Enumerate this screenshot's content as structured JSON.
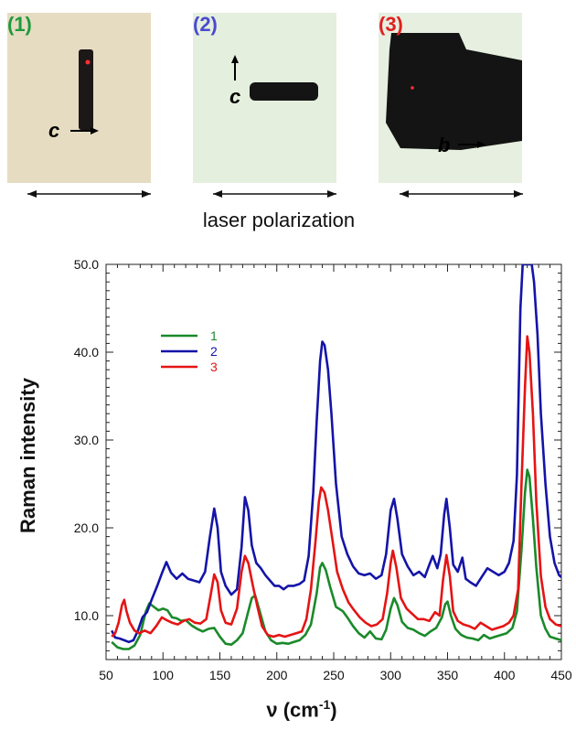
{
  "photos": [
    {
      "label": "(1)",
      "color": "#1f9a3c",
      "annotation_axis": "c"
    },
    {
      "label": "(2)",
      "color": "#4a4bd0",
      "annotation_axis": "c"
    },
    {
      "label": "(3)",
      "color": "#e02020",
      "annotation_axis": "b"
    }
  ],
  "caption": "laser polarization",
  "chart_data": {
    "type": "line",
    "title": "",
    "xlabel_prefix": "ν (cm",
    "xlabel_exp": "-1",
    "xlabel_suffix": ")",
    "ylabel": "Raman intensity",
    "xlim": [
      50,
      450
    ],
    "ylim": [
      5,
      50
    ],
    "x_ticks": [
      50,
      100,
      150,
      200,
      250,
      300,
      350,
      400,
      450
    ],
    "y_ticks": [
      10,
      20,
      30,
      40,
      50
    ],
    "y_tick_labels": [
      "10.0",
      "20.0",
      "30.0",
      "40.0",
      "50.0"
    ],
    "grid": false,
    "legend_position": "top-left",
    "series": [
      {
        "name": "1",
        "color": "#1a8a2a",
        "points": [
          [
            55,
            7.0
          ],
          [
            60,
            6.4
          ],
          [
            65,
            6.2
          ],
          [
            70,
            6.2
          ],
          [
            75,
            6.6
          ],
          [
            80,
            7.8
          ],
          [
            85,
            10.5
          ],
          [
            88,
            11.4
          ],
          [
            92,
            11.0
          ],
          [
            96,
            10.6
          ],
          [
            100,
            10.8
          ],
          [
            104,
            10.6
          ],
          [
            108,
            9.8
          ],
          [
            112,
            9.7
          ],
          [
            116,
            9.4
          ],
          [
            120,
            9.5
          ],
          [
            125,
            8.9
          ],
          [
            130,
            8.5
          ],
          [
            135,
            8.2
          ],
          [
            140,
            8.5
          ],
          [
            145,
            8.6
          ],
          [
            150,
            7.6
          ],
          [
            155,
            6.8
          ],
          [
            160,
            6.7
          ],
          [
            165,
            7.2
          ],
          [
            170,
            8.0
          ],
          [
            175,
            10.5
          ],
          [
            178,
            12.0
          ],
          [
            181,
            12.3
          ],
          [
            185,
            10.5
          ],
          [
            190,
            8.2
          ],
          [
            195,
            7.2
          ],
          [
            200,
            6.8
          ],
          [
            205,
            6.9
          ],
          [
            210,
            6.8
          ],
          [
            215,
            7.0
          ],
          [
            220,
            7.2
          ],
          [
            225,
            7.8
          ],
          [
            230,
            9.0
          ],
          [
            235,
            12.5
          ],
          [
            238,
            15.5
          ],
          [
            240,
            16.0
          ],
          [
            243,
            15.2
          ],
          [
            247,
            13.2
          ],
          [
            252,
            11.0
          ],
          [
            258,
            10.5
          ],
          [
            262,
            9.8
          ],
          [
            267,
            8.8
          ],
          [
            272,
            8.0
          ],
          [
            277,
            7.5
          ],
          [
            282,
            8.2
          ],
          [
            287,
            7.4
          ],
          [
            292,
            7.3
          ],
          [
            296,
            8.4
          ],
          [
            300,
            10.8
          ],
          [
            303,
            12.0
          ],
          [
            306,
            11.2
          ],
          [
            310,
            9.3
          ],
          [
            315,
            8.6
          ],
          [
            320,
            8.4
          ],
          [
            325,
            8.0
          ],
          [
            330,
            7.7
          ],
          [
            335,
            8.2
          ],
          [
            340,
            8.6
          ],
          [
            345,
            9.8
          ],
          [
            348,
            11.3
          ],
          [
            350,
            11.6
          ],
          [
            353,
            10.0
          ],
          [
            357,
            8.5
          ],
          [
            362,
            7.8
          ],
          [
            367,
            7.5
          ],
          [
            372,
            7.4
          ],
          [
            377,
            7.2
          ],
          [
            382,
            7.8
          ],
          [
            387,
            7.4
          ],
          [
            392,
            7.6
          ],
          [
            397,
            7.8
          ],
          [
            402,
            8.0
          ],
          [
            407,
            8.6
          ],
          [
            411,
            10.5
          ],
          [
            415,
            17.5
          ],
          [
            418,
            24.0
          ],
          [
            420,
            26.6
          ],
          [
            422,
            25.8
          ],
          [
            425,
            21.0
          ],
          [
            428,
            15.5
          ],
          [
            432,
            10.0
          ],
          [
            436,
            8.5
          ],
          [
            440,
            7.6
          ],
          [
            445,
            7.4
          ],
          [
            450,
            7.2
          ]
        ]
      },
      {
        "name": "2",
        "color": "#1414a8",
        "points": [
          [
            55,
            8.3
          ],
          [
            58,
            7.5
          ],
          [
            62,
            7.4
          ],
          [
            66,
            7.2
          ],
          [
            70,
            7.0
          ],
          [
            74,
            7.2
          ],
          [
            78,
            8.3
          ],
          [
            82,
            9.8
          ],
          [
            86,
            10.4
          ],
          [
            90,
            11.8
          ],
          [
            95,
            13.4
          ],
          [
            99,
            14.8
          ],
          [
            103,
            16.1
          ],
          [
            107,
            14.9
          ],
          [
            112,
            14.2
          ],
          [
            117,
            14.8
          ],
          [
            122,
            14.2
          ],
          [
            127,
            14.0
          ],
          [
            132,
            13.8
          ],
          [
            137,
            15.0
          ],
          [
            141,
            18.8
          ],
          [
            145,
            22.2
          ],
          [
            148,
            20.0
          ],
          [
            151,
            15.0
          ],
          [
            155,
            13.4
          ],
          [
            160,
            12.4
          ],
          [
            165,
            13.0
          ],
          [
            169,
            17.8
          ],
          [
            172,
            23.5
          ],
          [
            175,
            22.0
          ],
          [
            178,
            18.0
          ],
          [
            182,
            16.0
          ],
          [
            186,
            15.4
          ],
          [
            190,
            14.6
          ],
          [
            194,
            14.0
          ],
          [
            198,
            13.4
          ],
          [
            202,
            13.4
          ],
          [
            206,
            13.0
          ],
          [
            210,
            13.4
          ],
          [
            215,
            13.4
          ],
          [
            220,
            13.6
          ],
          [
            224,
            14.0
          ],
          [
            228,
            16.8
          ],
          [
            232,
            24.0
          ],
          [
            235,
            32.0
          ],
          [
            238,
            39.0
          ],
          [
            240,
            41.2
          ],
          [
            242,
            40.8
          ],
          [
            245,
            38.0
          ],
          [
            248,
            33.0
          ],
          [
            252,
            25.0
          ],
          [
            257,
            19.0
          ],
          [
            262,
            17.0
          ],
          [
            267,
            15.6
          ],
          [
            272,
            14.8
          ],
          [
            277,
            14.6
          ],
          [
            282,
            14.8
          ],
          [
            287,
            14.2
          ],
          [
            292,
            14.6
          ],
          [
            296,
            17.0
          ],
          [
            300,
            22.0
          ],
          [
            303,
            23.3
          ],
          [
            306,
            21.0
          ],
          [
            310,
            17.0
          ],
          [
            315,
            15.6
          ],
          [
            320,
            14.6
          ],
          [
            325,
            15.0
          ],
          [
            330,
            14.4
          ],
          [
            334,
            15.8
          ],
          [
            337,
            16.8
          ],
          [
            341,
            15.4
          ],
          [
            344,
            17.0
          ],
          [
            347,
            21.5
          ],
          [
            349,
            23.3
          ],
          [
            352,
            20.0
          ],
          [
            355,
            15.8
          ],
          [
            359,
            15.0
          ],
          [
            363,
            16.6
          ],
          [
            366,
            14.2
          ],
          [
            370,
            13.8
          ],
          [
            375,
            13.4
          ],
          [
            380,
            14.4
          ],
          [
            385,
            15.4
          ],
          [
            390,
            15.0
          ],
          [
            395,
            14.6
          ],
          [
            400,
            15.0
          ],
          [
            404,
            16.0
          ],
          [
            408,
            18.5
          ],
          [
            411,
            26.0
          ],
          [
            414,
            45.0
          ],
          [
            416,
            50.0
          ],
          [
            420,
            50.0
          ],
          [
            424,
            50.0
          ],
          [
            426,
            48.0
          ],
          [
            429,
            42.0
          ],
          [
            432,
            33.0
          ],
          [
            436,
            25.0
          ],
          [
            440,
            19.0
          ],
          [
            444,
            16.0
          ],
          [
            448,
            14.6
          ],
          [
            450,
            14.4
          ]
        ]
      },
      {
        "name": "3",
        "color": "#e51414",
        "points": [
          [
            55,
            7.6
          ],
          [
            58,
            8.0
          ],
          [
            61,
            9.2
          ],
          [
            64,
            11.2
          ],
          [
            66,
            11.8
          ],
          [
            68,
            10.5
          ],
          [
            71,
            9.2
          ],
          [
            75,
            8.3
          ],
          [
            79,
            8.0
          ],
          [
            84,
            8.3
          ],
          [
            89,
            8.0
          ],
          [
            94,
            8.8
          ],
          [
            99,
            9.8
          ],
          [
            103,
            9.5
          ],
          [
            108,
            9.2
          ],
          [
            113,
            9.0
          ],
          [
            118,
            9.4
          ],
          [
            123,
            9.6
          ],
          [
            128,
            9.2
          ],
          [
            133,
            9.1
          ],
          [
            138,
            9.6
          ],
          [
            142,
            12.4
          ],
          [
            145,
            14.7
          ],
          [
            148,
            13.8
          ],
          [
            151,
            10.6
          ],
          [
            155,
            9.2
          ],
          [
            160,
            9.0
          ],
          [
            165,
            10.8
          ],
          [
            169,
            15.0
          ],
          [
            172,
            16.8
          ],
          [
            175,
            16.0
          ],
          [
            179,
            13.4
          ],
          [
            183,
            11.0
          ],
          [
            187,
            8.8
          ],
          [
            192,
            7.8
          ],
          [
            197,
            7.6
          ],
          [
            202,
            7.8
          ],
          [
            207,
            7.6
          ],
          [
            212,
            7.8
          ],
          [
            217,
            8.0
          ],
          [
            222,
            8.2
          ],
          [
            226,
            9.6
          ],
          [
            230,
            13.0
          ],
          [
            234,
            18.5
          ],
          [
            237,
            23.0
          ],
          [
            239,
            24.6
          ],
          [
            242,
            24.0
          ],
          [
            245,
            22.0
          ],
          [
            249,
            18.5
          ],
          [
            253,
            15.0
          ],
          [
            258,
            13.0
          ],
          [
            263,
            11.5
          ],
          [
            268,
            10.6
          ],
          [
            273,
            9.8
          ],
          [
            278,
            9.2
          ],
          [
            283,
            8.8
          ],
          [
            288,
            9.0
          ],
          [
            293,
            9.6
          ],
          [
            297,
            12.6
          ],
          [
            300,
            16.0
          ],
          [
            302,
            17.4
          ],
          [
            305,
            15.5
          ],
          [
            309,
            12.0
          ],
          [
            314,
            10.8
          ],
          [
            319,
            10.2
          ],
          [
            324,
            9.6
          ],
          [
            329,
            9.6
          ],
          [
            334,
            9.4
          ],
          [
            339,
            10.4
          ],
          [
            343,
            10.0
          ],
          [
            346,
            14.0
          ],
          [
            349,
            16.9
          ],
          [
            352,
            14.5
          ],
          [
            355,
            10.5
          ],
          [
            359,
            9.4
          ],
          [
            364,
            9.0
          ],
          [
            369,
            8.8
          ],
          [
            374,
            8.5
          ],
          [
            379,
            9.2
          ],
          [
            384,
            8.8
          ],
          [
            389,
            8.4
          ],
          [
            394,
            8.6
          ],
          [
            399,
            8.8
          ],
          [
            404,
            9.2
          ],
          [
            408,
            10.0
          ],
          [
            412,
            13.0
          ],
          [
            415,
            25.0
          ],
          [
            418,
            36.0
          ],
          [
            420,
            41.8
          ],
          [
            422,
            40.0
          ],
          [
            425,
            33.0
          ],
          [
            428,
            23.0
          ],
          [
            432,
            14.5
          ],
          [
            436,
            11.0
          ],
          [
            440,
            9.6
          ],
          [
            445,
            9.0
          ],
          [
            450,
            8.8
          ]
        ]
      }
    ]
  }
}
